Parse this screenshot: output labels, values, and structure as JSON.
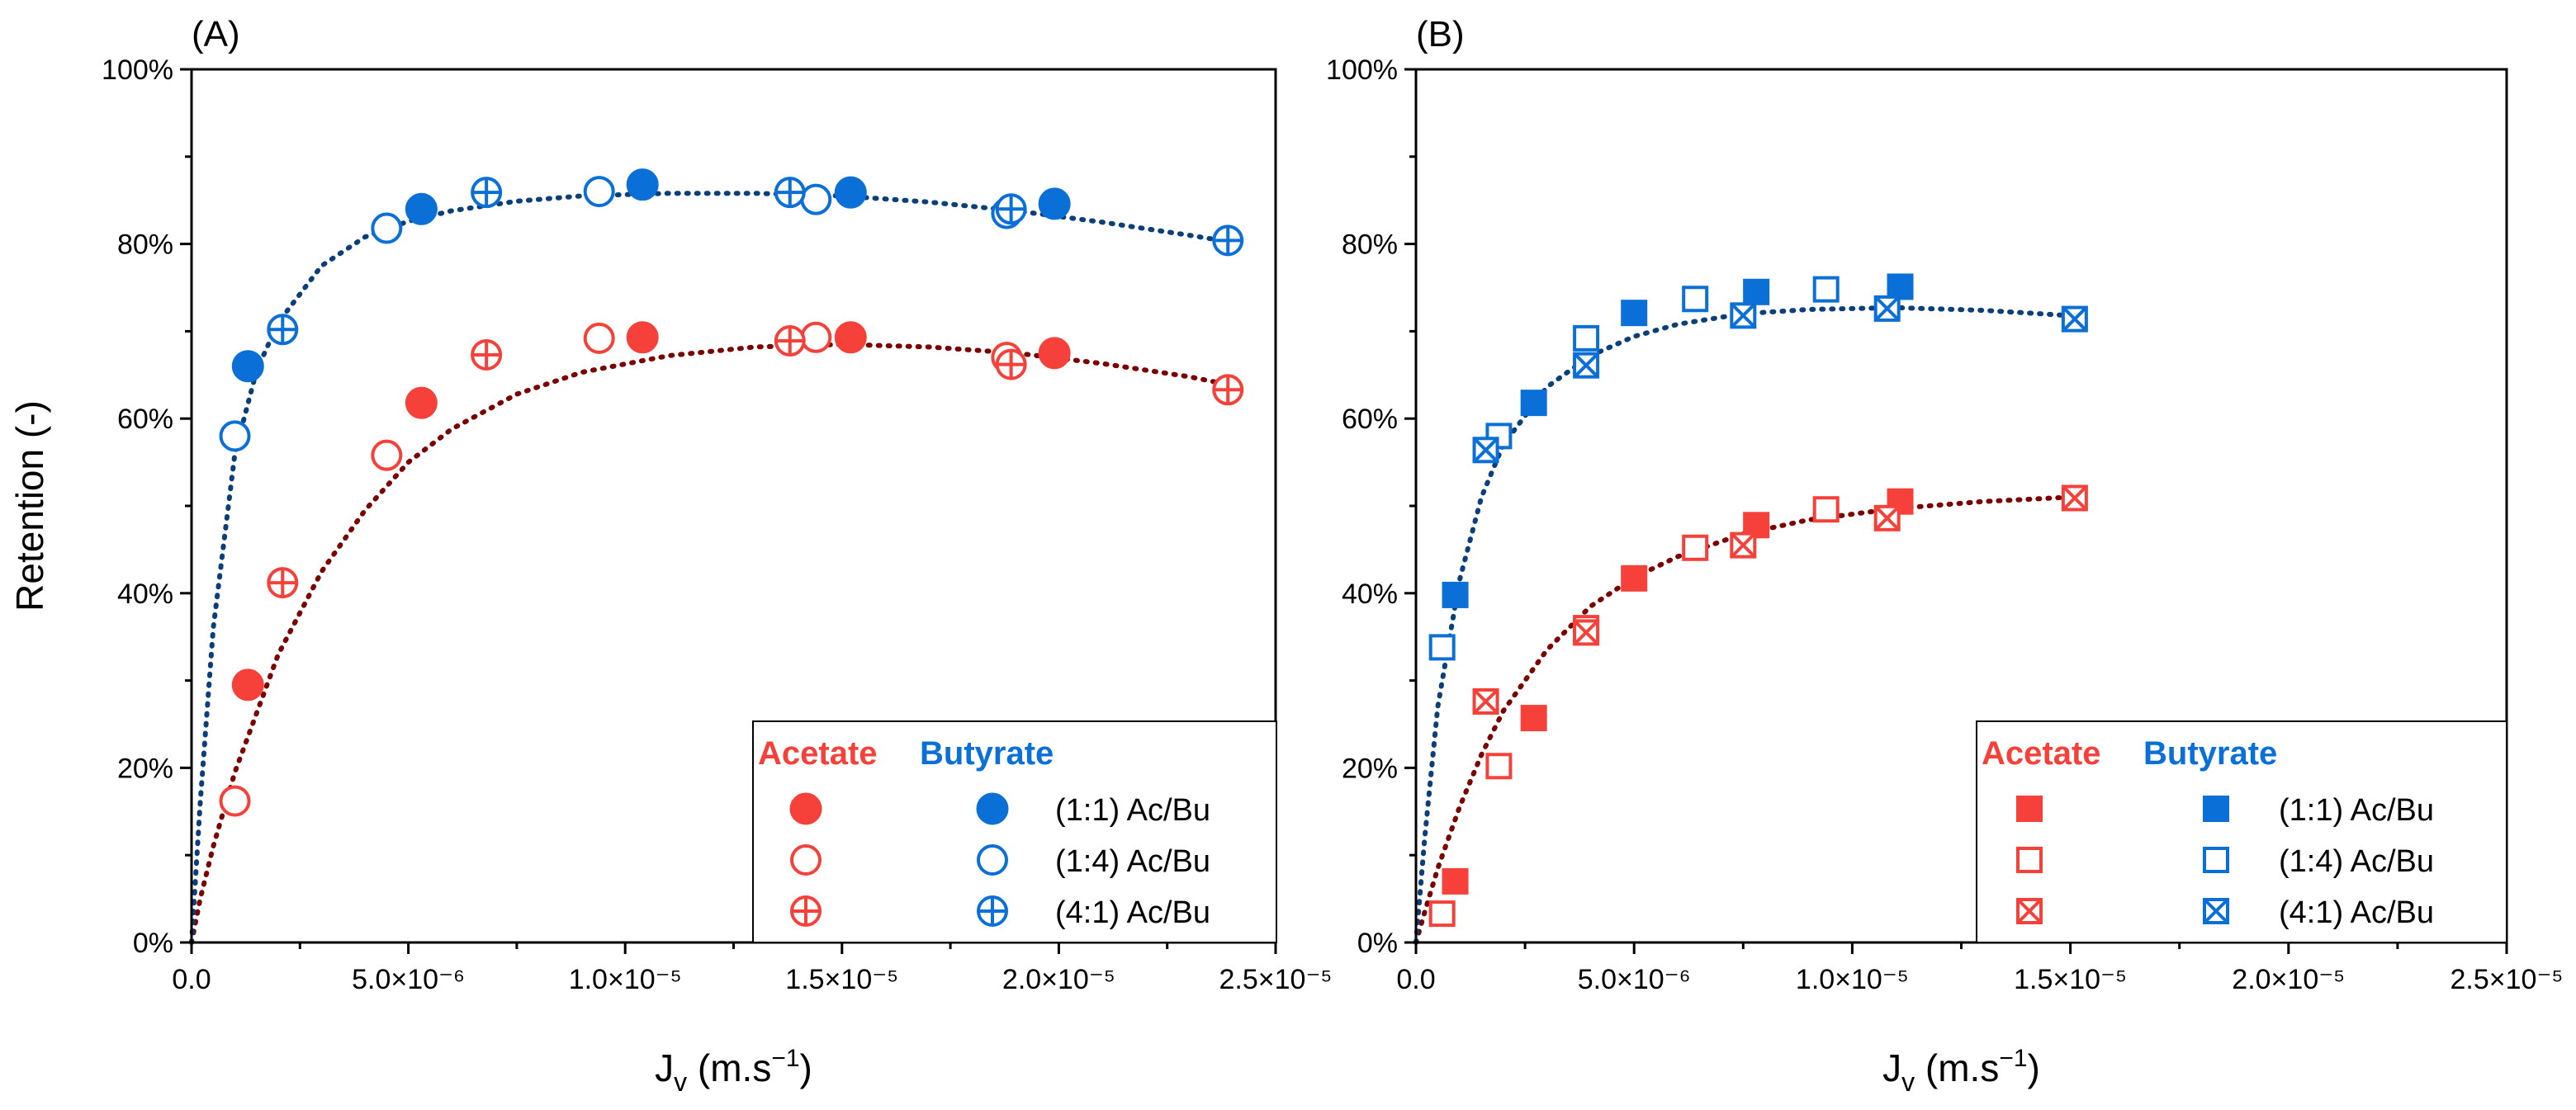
{
  "colors": {
    "acetate": "#F5413A",
    "butyrate": "#0A6FD6",
    "fit_acetate": "#7A0000",
    "fit_butyrate": "#0A3F7A"
  },
  "chart_data": [
    {
      "panel": "(A)",
      "type": "scatter",
      "marker_family": "circle",
      "xlabel": "J",
      "xlabel_sub": "v",
      "xlabel_unit": " (m.s",
      "xlabel_sup": "−1",
      "xlabel_end": ")",
      "ylabel": "Retention (-)",
      "xlim": [
        0,
        2.5e-05
      ],
      "ylim": [
        0,
        100
      ],
      "x_ticks": [
        0,
        5e-06,
        1e-05,
        1.5e-05,
        2e-05,
        2.5e-05
      ],
      "x_tick_labels": [
        "0.0",
        "5.0×10⁻⁶",
        "1.0×10⁻⁵",
        "1.5×10⁻⁵",
        "2.0×10⁻⁵",
        "2.5×10⁻⁵"
      ],
      "y_ticks": [
        0,
        20,
        40,
        60,
        80,
        100
      ],
      "y_tick_labels": [
        "0%",
        "20%",
        "40%",
        "60%",
        "80%",
        "100%"
      ],
      "legend": {
        "head_acetate": "Acetate",
        "head_butyrate": "Butyrate",
        "labels": [
          "(1:1) Ac/Bu",
          "(1:4) Ac/Bu",
          "(4:1) Ac/Bu"
        ],
        "placement": "bottom-right"
      },
      "series": [
        {
          "name": "Acetate (1:1) Ac/Bu",
          "compound": "acetate",
          "style": "filled",
          "x": [
            1.3e-06,
            5.3e-06,
            1.04e-05,
            1.52e-05,
            1.99e-05
          ],
          "y": [
            29.5,
            61.8,
            69.3,
            69.3,
            67.5
          ]
        },
        {
          "name": "Acetate (1:4) Ac/Bu",
          "compound": "acetate",
          "style": "open",
          "x": [
            1e-06,
            4.5e-06,
            9.4e-06,
            1.44e-05,
            1.88e-05
          ],
          "y": [
            16.2,
            55.8,
            69.2,
            69.3,
            67.0
          ]
        },
        {
          "name": "Acetate (4:1) Ac/Bu",
          "compound": "acetate",
          "style": "cross",
          "x": [
            2.1e-06,
            6.8e-06,
            1.38e-05,
            1.89e-05,
            2.39e-05
          ],
          "y": [
            41.2,
            67.3,
            68.9,
            66.2,
            63.3
          ]
        },
        {
          "name": "Butyrate (1:1) Ac/Bu",
          "compound": "butyrate",
          "style": "filled",
          "x": [
            1.3e-06,
            5.3e-06,
            1.04e-05,
            1.52e-05,
            1.99e-05
          ],
          "y": [
            66.0,
            84.0,
            86.8,
            85.9,
            84.6
          ]
        },
        {
          "name": "Butyrate (1:4) Ac/Bu",
          "compound": "butyrate",
          "style": "open",
          "x": [
            1e-06,
            4.5e-06,
            9.4e-06,
            1.44e-05,
            1.88e-05
          ],
          "y": [
            58.0,
            81.8,
            86.0,
            85.1,
            83.5
          ]
        },
        {
          "name": "Butyrate (4:1) Ac/Bu",
          "compound": "butyrate",
          "style": "cross",
          "x": [
            2.1e-06,
            6.8e-06,
            1.38e-05,
            1.89e-05,
            2.39e-05
          ],
          "y": [
            70.2,
            85.9,
            85.9,
            84.0,
            80.4
          ]
        }
      ],
      "fits": [
        {
          "compound": "acetate",
          "x": [
            0,
            2e-07,
            5e-07,
            1e-06,
            2e-06,
            3e-06,
            4e-06,
            5e-06,
            6e-06,
            7.5e-06,
            9e-06,
            1.1e-05,
            1.3e-05,
            1.5e-05,
            1.7e-05,
            1.9e-05,
            2.1e-05,
            2.3e-05,
            2.4e-05
          ],
          "y": [
            0,
            5,
            11,
            19.5,
            33,
            42.5,
            49.5,
            55,
            58.8,
            62.8,
            65.3,
            67.2,
            68.2,
            68.5,
            68.2,
            67.5,
            66.3,
            64.8,
            63.8
          ]
        },
        {
          "compound": "butyrate",
          "x": [
            0,
            2e-07,
            5e-07,
            1e-06,
            1.5e-06,
            2e-06,
            3e-06,
            4e-06,
            5e-06,
            6e-06,
            7.5e-06,
            9e-06,
            1.1e-05,
            1.3e-05,
            1.5e-05,
            1.7e-05,
            1.9e-05,
            2.1e-05,
            2.3e-05,
            2.4e-05
          ],
          "y": [
            0,
            16,
            36,
            56,
            65.5,
            71,
            77.5,
            80.8,
            82.6,
            83.8,
            84.9,
            85.5,
            85.8,
            85.8,
            85.5,
            84.8,
            83.8,
            82.5,
            81.0,
            80.2
          ]
        }
      ]
    },
    {
      "panel": "(B)",
      "type": "scatter",
      "marker_family": "square",
      "xlabel": "J",
      "xlabel_sub": "v",
      "xlabel_unit": " (m.s",
      "xlabel_sup": "−1",
      "xlabel_end": ")",
      "ylabel": "",
      "xlim": [
        0,
        2.5e-05
      ],
      "ylim": [
        0,
        100
      ],
      "x_ticks": [
        0,
        5e-06,
        1e-05,
        1.5e-05,
        2e-05,
        2.5e-05
      ],
      "x_tick_labels": [
        "0.0",
        "5.0×10⁻⁶",
        "1.0×10⁻⁵",
        "1.5×10⁻⁵",
        "2.0×10⁻⁵",
        "2.5×10⁻⁵"
      ],
      "y_ticks": [
        0,
        20,
        40,
        60,
        80,
        100
      ],
      "y_tick_labels": [
        "0%",
        "20%",
        "40%",
        "60%",
        "80%",
        "100%"
      ],
      "legend": {
        "head_acetate": "Acetate",
        "head_butyrate": "Butyrate",
        "labels": [
          "(1:1) Ac/Bu",
          "(1:4) Ac/Bu",
          "(4:1) Ac/Bu"
        ],
        "placement": "bottom-right"
      },
      "series": [
        {
          "name": "Acetate (1:1) Ac/Bu",
          "compound": "acetate",
          "style": "filled",
          "x": [
            9e-07,
            2.7e-06,
            5e-06,
            7.8e-06,
            1.11e-05
          ],
          "y": [
            7.0,
            25.7,
            41.7,
            47.8,
            50.5
          ]
        },
        {
          "name": "Acetate (1:4) Ac/Bu",
          "compound": "acetate",
          "style": "open",
          "x": [
            6e-07,
            1.9e-06,
            3.9e-06,
            6.4e-06,
            9.4e-06
          ],
          "y": [
            3.3,
            20.2,
            36.0,
            45.2,
            49.6
          ]
        },
        {
          "name": "Acetate (4:1) Ac/Bu",
          "compound": "acetate",
          "style": "cross",
          "x": [
            1.6e-06,
            3.9e-06,
            7.5e-06,
            1.08e-05,
            1.51e-05
          ],
          "y": [
            27.6,
            35.5,
            45.5,
            48.6,
            50.9
          ]
        },
        {
          "name": "Butyrate (1:1) Ac/Bu",
          "compound": "butyrate",
          "style": "filled",
          "x": [
            9e-07,
            2.7e-06,
            5e-06,
            7.8e-06,
            1.11e-05
          ],
          "y": [
            39.8,
            61.8,
            72.1,
            74.5,
            75.1
          ]
        },
        {
          "name": "Butyrate (1:4) Ac/Bu",
          "compound": "butyrate",
          "style": "open",
          "x": [
            6e-07,
            1.9e-06,
            3.9e-06,
            6.4e-06,
            9.4e-06
          ],
          "y": [
            33.8,
            58.0,
            69.2,
            73.7,
            74.8
          ]
        },
        {
          "name": "Butyrate (4:1) Ac/Bu",
          "compound": "butyrate",
          "style": "cross",
          "x": [
            1.6e-06,
            3.9e-06,
            7.5e-06,
            1.08e-05,
            1.51e-05
          ],
          "y": [
            56.4,
            66.1,
            71.8,
            72.6,
            71.4
          ]
        }
      ],
      "fits": [
        {
          "compound": "acetate",
          "x": [
            0,
            2e-07,
            5e-07,
            1e-06,
            1.5e-06,
            2e-06,
            3e-06,
            4e-06,
            5e-06,
            6e-06,
            7.5e-06,
            9e-06,
            1.1e-05,
            1.3e-05,
            1.5e-05
          ],
          "y": [
            0,
            3.5,
            8.5,
            15.5,
            21.5,
            26.5,
            33.5,
            38.5,
            41.8,
            44.2,
            46.8,
            48.4,
            49.7,
            50.5,
            51.0
          ]
        },
        {
          "compound": "butyrate",
          "x": [
            0,
            2e-07,
            5e-07,
            1e-06,
            1.5e-06,
            2e-06,
            3e-06,
            4e-06,
            5e-06,
            6e-06,
            7.5e-06,
            9e-06,
            1.1e-05,
            1.3e-05,
            1.5e-05
          ],
          "y": [
            0,
            12,
            27,
            41.5,
            51,
            57,
            63.6,
            67.2,
            69.4,
            70.8,
            72.0,
            72.5,
            72.7,
            72.4,
            71.8
          ]
        }
      ]
    }
  ]
}
